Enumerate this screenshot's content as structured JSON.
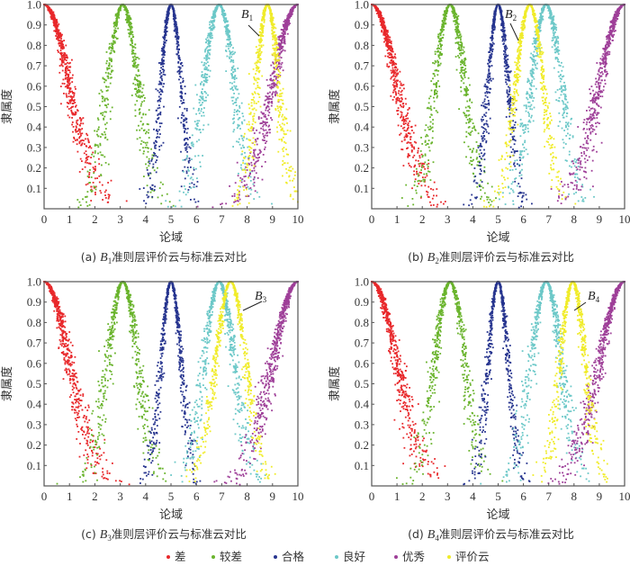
{
  "legend": [
    {
      "label": "差",
      "color": "#e8282b"
    },
    {
      "label": "较差",
      "color": "#6ab42d"
    },
    {
      "label": "合格",
      "color": "#27358f"
    },
    {
      "label": "良好",
      "color": "#6cc8c8"
    },
    {
      "label": "优秀",
      "color": "#9e3f98"
    },
    {
      "label": "评价云",
      "color": "#f0ec2a"
    }
  ],
  "chart_data": [
    {
      "type": "scatter",
      "panel": "a",
      "caption_prefix": "(a) ",
      "caption_var": "B",
      "caption_sub": "1",
      "caption_suffix": "准则层评价云与标准云对比",
      "annotation": {
        "text": "B",
        "sub": "1"
      },
      "xlabel": "论域",
      "ylabel": "隶属度",
      "xlim": [
        0,
        10
      ],
      "ylim": [
        0,
        1.0
      ],
      "xticks": [
        "0",
        "1",
        "2",
        "3",
        "4",
        "5",
        "6",
        "7",
        "8",
        "9",
        "10"
      ],
      "yticks": [
        "0.1",
        "0.2",
        "0.3",
        "0.4",
        "0.5",
        "0.6",
        "0.7",
        "0.8",
        "0.9",
        "1.0"
      ],
      "series": [
        {
          "name": "差",
          "Ex": 0,
          "En": 1.0,
          "He": 0.12
        },
        {
          "name": "较差",
          "Ex": 3.1,
          "En": 0.6,
          "He": 0.1
        },
        {
          "name": "合格",
          "Ex": 5.0,
          "En": 0.4,
          "He": 0.06
        },
        {
          "name": "良好",
          "Ex": 6.9,
          "En": 0.6,
          "He": 0.1
        },
        {
          "name": "优秀",
          "Ex": 10,
          "En": 1.0,
          "He": 0.12
        },
        {
          "name": "评价云",
          "Ex": 8.8,
          "En": 0.45,
          "He": 0.08
        }
      ]
    },
    {
      "type": "scatter",
      "panel": "b",
      "caption_prefix": "(b) ",
      "caption_var": "B",
      "caption_sub": "2",
      "caption_suffix": "准则层评价云与标准云对比",
      "annotation": {
        "text": "B",
        "sub": "2"
      },
      "xlabel": "论域",
      "ylabel": "隶属度",
      "xlim": [
        0,
        10
      ],
      "ylim": [
        0,
        1.0
      ],
      "xticks": [
        "0",
        "1",
        "2",
        "3",
        "4",
        "5",
        "6",
        "7",
        "8",
        "9",
        "10"
      ],
      "yticks": [
        "0.1",
        "0.2",
        "0.3",
        "0.4",
        "0.5",
        "0.6",
        "0.7",
        "0.8",
        "0.9",
        "1.0"
      ],
      "series": [
        {
          "name": "差",
          "Ex": 0,
          "En": 1.0,
          "He": 0.12
        },
        {
          "name": "较差",
          "Ex": 3.1,
          "En": 0.6,
          "He": 0.1
        },
        {
          "name": "合格",
          "Ex": 5.0,
          "En": 0.4,
          "He": 0.06
        },
        {
          "name": "良好",
          "Ex": 6.9,
          "En": 0.6,
          "He": 0.1
        },
        {
          "name": "优秀",
          "Ex": 10,
          "En": 1.0,
          "He": 0.12
        },
        {
          "name": "评价云",
          "Ex": 6.25,
          "En": 0.55,
          "He": 0.07
        }
      ]
    },
    {
      "type": "scatter",
      "panel": "c",
      "caption_prefix": "(c) ",
      "caption_var": "B",
      "caption_sub": "3",
      "caption_suffix": "准则层评价云与标准云对比",
      "annotation": {
        "text": "B",
        "sub": "3"
      },
      "xlabel": "论域",
      "ylabel": "隶属度",
      "xlim": [
        0,
        10
      ],
      "ylim": [
        0,
        1.0
      ],
      "xticks": [
        "0",
        "1",
        "2",
        "3",
        "4",
        "5",
        "6",
        "7",
        "8",
        "9",
        "10"
      ],
      "yticks": [
        "0.1",
        "0.2",
        "0.3",
        "0.4",
        "0.5",
        "0.6",
        "0.7",
        "0.8",
        "0.9",
        "1.0"
      ],
      "series": [
        {
          "name": "差",
          "Ex": 0,
          "En": 1.0,
          "He": 0.12
        },
        {
          "name": "较差",
          "Ex": 3.1,
          "En": 0.6,
          "He": 0.1
        },
        {
          "name": "合格",
          "Ex": 5.0,
          "En": 0.4,
          "He": 0.06
        },
        {
          "name": "良好",
          "Ex": 6.9,
          "En": 0.6,
          "He": 0.1
        },
        {
          "name": "优秀",
          "Ex": 10,
          "En": 1.0,
          "He": 0.12
        },
        {
          "name": "评价云",
          "Ex": 7.35,
          "En": 0.6,
          "He": 0.07
        }
      ]
    },
    {
      "type": "scatter",
      "panel": "d",
      "caption_prefix": "(d) ",
      "caption_var": "B",
      "caption_sub": "4",
      "caption_suffix": "准则层评价云与标准云对比",
      "annotation": {
        "text": "B",
        "sub": "4"
      },
      "xlabel": "论域",
      "ylabel": "隶属度",
      "xlim": [
        0,
        10
      ],
      "ylim": [
        0,
        1.0
      ],
      "xticks": [
        "0",
        "1",
        "2",
        "3",
        "4",
        "5",
        "6",
        "7",
        "8",
        "9",
        "10"
      ],
      "yticks": [
        "0.1",
        "0.2",
        "0.3",
        "0.4",
        "0.5",
        "0.6",
        "0.7",
        "0.8",
        "0.9",
        "1.0"
      ],
      "series": [
        {
          "name": "差",
          "Ex": 0,
          "En": 1.0,
          "He": 0.12
        },
        {
          "name": "较差",
          "Ex": 3.1,
          "En": 0.6,
          "He": 0.1
        },
        {
          "name": "合格",
          "Ex": 5.0,
          "En": 0.4,
          "He": 0.06
        },
        {
          "name": "良好",
          "Ex": 6.9,
          "En": 0.6,
          "He": 0.1
        },
        {
          "name": "优秀",
          "Ex": 10,
          "En": 1.0,
          "He": 0.12
        },
        {
          "name": "评价云",
          "Ex": 7.95,
          "En": 0.5,
          "He": 0.08
        }
      ]
    }
  ]
}
